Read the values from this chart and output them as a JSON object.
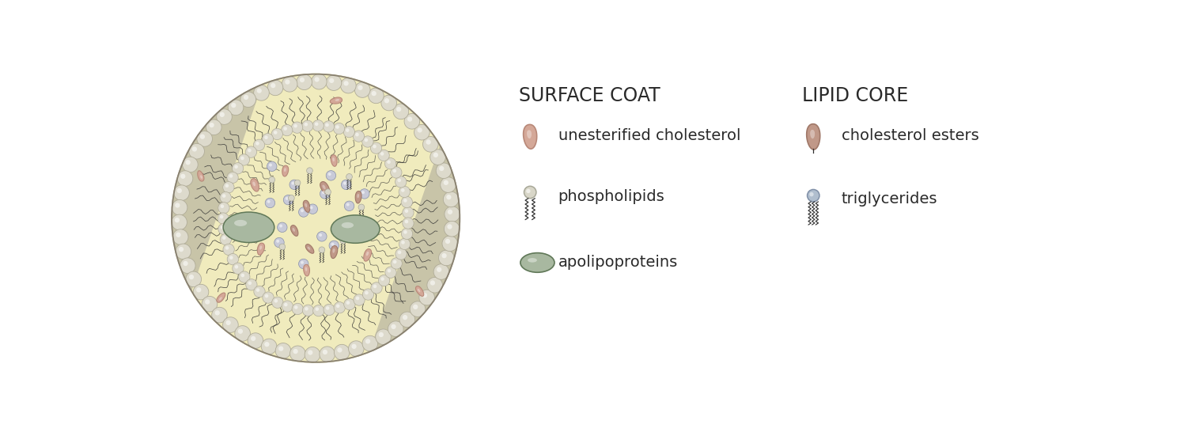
{
  "title_surface": "SURFACE COAT",
  "title_lipid": "LIPID CORE",
  "surface_labels": [
    "unesterified cholesterol",
    "phospholipids",
    "apolipoproteins"
  ],
  "lipid_labels": [
    "cholesterol esters",
    "triglycerides"
  ],
  "bg_color": "#ffffff",
  "text_color": "#2a2a2a",
  "title_fontsize": 17,
  "label_fontsize": 14,
  "teardrop_light_fill": "#d4a898",
  "teardrop_light_edge": "#b88878",
  "teardrop_dark_fill": "#c09888",
  "teardrop_dark_edge": "#a07868",
  "phospholipid_head_fill": "#d8d6c8",
  "phospholipid_head_edge": "#a8a898",
  "triglyceride_head_fill": "#b0bece",
  "triglyceride_head_edge": "#8090a8",
  "apolipoprotein_fill": "#a8b8a0",
  "apolipoprotein_edge": "#607858",
  "outer_bead_fill": "#dddacc",
  "outer_bead_edge": "#b0ac98",
  "inner_bead_fill": "#c8cad8",
  "inner_bead_edge": "#8890a8",
  "membrane_fill": "#c8c4a8",
  "lipid_core_fill": "#f5f0c0",
  "wavy_color": "#303030",
  "sphere_border": "#888070"
}
